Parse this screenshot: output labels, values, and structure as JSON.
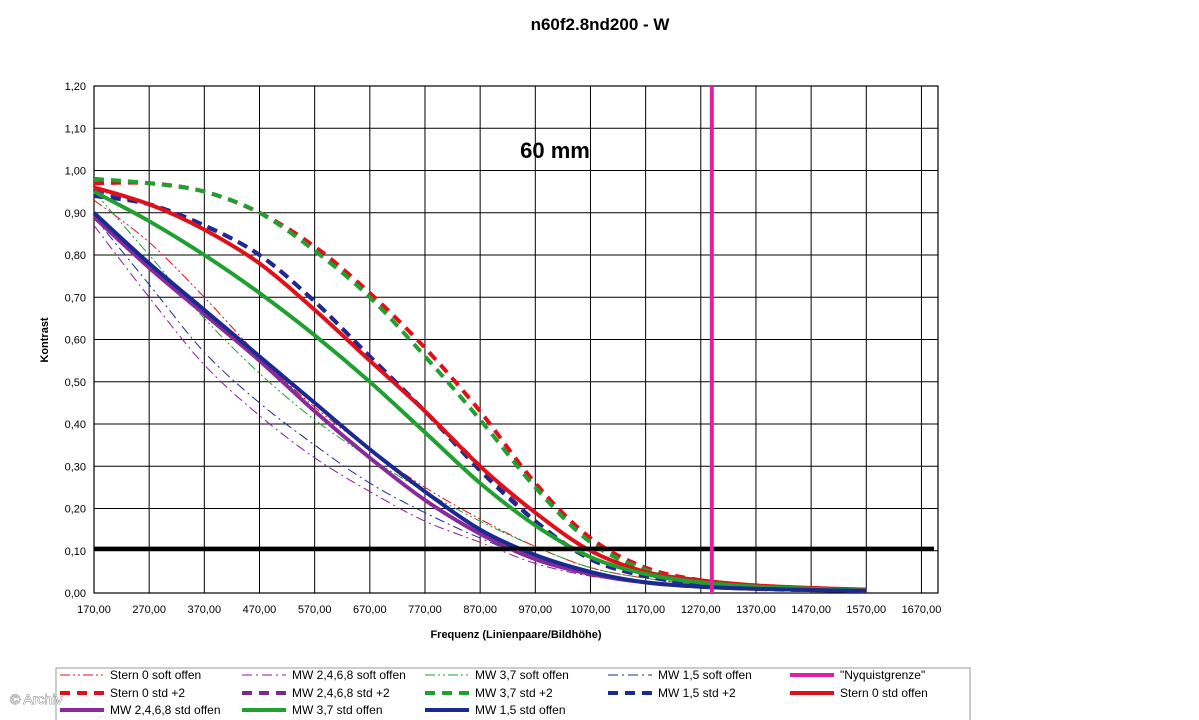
{
  "chart_data": {
    "type": "line",
    "title": "n60f2.8nd200 - W",
    "xlabel": "Frequenz (Linienpaare/Bildhöhe)",
    "ylabel": "Kontrast",
    "xlim": [
      170,
      1700
    ],
    "ylim": [
      0,
      1.2
    ],
    "x_ticks": [
      "170,00",
      "270,00",
      "370,00",
      "470,00",
      "570,00",
      "670,00",
      "770,00",
      "870,00",
      "970,00",
      "1070,00",
      "1170,00",
      "1270,00",
      "1370,00",
      "1470,00",
      "1570,00",
      "1670,00"
    ],
    "y_ticks": [
      "0,00",
      "0,10",
      "0,20",
      "0,30",
      "0,40",
      "0,50",
      "0,60",
      "0,70",
      "0,80",
      "0,90",
      "1,00",
      "1,10",
      "1,20"
    ],
    "grid": true,
    "legend_position": "bottom",
    "annotation": "60 mm",
    "reference_lines": [
      {
        "orientation": "horizontal",
        "value": 0.105,
        "color": "#000000"
      },
      {
        "name": "\"Nyquistgrenze\"",
        "orientation": "vertical",
        "value": 1290,
        "color": "#e020a0"
      }
    ],
    "series": [
      {
        "name": "Stern 0 soft offen",
        "color": "#e0101a",
        "style": "dashdotdot",
        "width": 1,
        "x": [
          170,
          270,
          370,
          470,
          570,
          670,
          770,
          870,
          970,
          1070,
          1170,
          1270,
          1370,
          1470,
          1570
        ],
        "y": [
          0.93,
          0.83,
          0.7,
          0.56,
          0.44,
          0.34,
          0.25,
          0.175,
          0.11,
          0.06,
          0.035,
          0.02,
          0.012,
          0.008,
          0.005
        ]
      },
      {
        "name": "MW 2,4,6,8 soft offen",
        "color": "#8a1c9a",
        "style": "dashdot",
        "width": 1,
        "x": [
          170,
          270,
          370,
          470,
          570,
          670,
          770,
          870,
          970,
          1070,
          1170,
          1270,
          1370,
          1470,
          1570
        ],
        "y": [
          0.87,
          0.7,
          0.54,
          0.42,
          0.32,
          0.24,
          0.17,
          0.12,
          0.07,
          0.04,
          0.025,
          0.015,
          0.01,
          0.007,
          0.005
        ]
      },
      {
        "name": "MW 3,7 soft offen",
        "color": "#20a030",
        "style": "dashdotdot",
        "width": 1,
        "x": [
          170,
          270,
          370,
          470,
          570,
          670,
          770,
          870,
          970,
          1070,
          1170,
          1270,
          1370,
          1470,
          1570
        ],
        "y": [
          0.95,
          0.8,
          0.65,
          0.52,
          0.41,
          0.32,
          0.24,
          0.17,
          0.11,
          0.06,
          0.035,
          0.02,
          0.012,
          0.008,
          0.005
        ]
      },
      {
        "name": "MW 1,5 soft offen",
        "color": "#1a2a90",
        "style": "dashdot",
        "width": 1,
        "x": [
          170,
          270,
          370,
          470,
          570,
          670,
          770,
          870,
          970,
          1070,
          1170,
          1270,
          1370,
          1470,
          1570
        ],
        "y": [
          0.89,
          0.73,
          0.57,
          0.45,
          0.35,
          0.26,
          0.19,
          0.13,
          0.08,
          0.045,
          0.025,
          0.015,
          0.01,
          0.007,
          0.005
        ]
      },
      {
        "name": "\"Nyquistgrenze\"",
        "color": "#e020a0",
        "style": "solid",
        "width": 4,
        "x": [
          1290,
          1290
        ],
        "y": [
          0,
          1.2
        ]
      },
      {
        "name": "Stern 0 std +2",
        "color": "#e0101a",
        "style": "dash",
        "width": 4,
        "x": [
          170,
          270,
          370,
          470,
          570,
          670,
          770,
          870,
          970,
          1070,
          1170,
          1270,
          1370,
          1470,
          1570
        ],
        "y": [
          0.97,
          0.97,
          0.95,
          0.9,
          0.82,
          0.71,
          0.58,
          0.43,
          0.26,
          0.13,
          0.06,
          0.03,
          0.015,
          0.01,
          0.008
        ]
      },
      {
        "name": "MW 2,4,6,8 std +2",
        "color": "#7a2a8a",
        "style": "dash",
        "width": 4,
        "x": [
          170,
          270,
          370,
          470,
          570,
          670,
          770,
          870,
          970,
          1070,
          1170,
          1270,
          1370,
          1470,
          1570
        ],
        "y": [
          0.95,
          0.92,
          0.87,
          0.8,
          0.69,
          0.56,
          0.43,
          0.3,
          0.17,
          0.08,
          0.04,
          0.02,
          0.01,
          0.007,
          0.005
        ]
      },
      {
        "name": "MW 3,7 std +2",
        "color": "#20a030",
        "style": "dash",
        "width": 4,
        "x": [
          170,
          270,
          370,
          470,
          570,
          670,
          770,
          870,
          970,
          1070,
          1170,
          1270,
          1370,
          1470,
          1570
        ],
        "y": [
          0.98,
          0.97,
          0.95,
          0.9,
          0.81,
          0.7,
          0.56,
          0.41,
          0.25,
          0.12,
          0.055,
          0.025,
          0.012,
          0.008,
          0.005
        ]
      },
      {
        "name": "MW 1,5 std +2",
        "color": "#1a2a90",
        "style": "dash",
        "width": 4,
        "x": [
          170,
          270,
          370,
          470,
          570,
          670,
          770,
          870,
          970,
          1070,
          1170,
          1270,
          1370,
          1470,
          1570
        ],
        "y": [
          0.94,
          0.92,
          0.87,
          0.8,
          0.69,
          0.56,
          0.43,
          0.29,
          0.17,
          0.08,
          0.04,
          0.02,
          0.01,
          0.007,
          0.005
        ]
      },
      {
        "name": "Stern 0 std offen",
        "color": "#e0101a",
        "style": "solid",
        "width": 4,
        "x": [
          170,
          270,
          370,
          470,
          570,
          670,
          770,
          870,
          970,
          1070,
          1170,
          1270,
          1370,
          1470,
          1570
        ],
        "y": [
          0.96,
          0.92,
          0.86,
          0.78,
          0.67,
          0.55,
          0.43,
          0.3,
          0.19,
          0.1,
          0.05,
          0.03,
          0.018,
          0.012,
          0.008
        ]
      },
      {
        "name": "MW 2,4,6,8 std offen",
        "color": "#8a2a9a",
        "style": "solid",
        "width": 4,
        "x": [
          170,
          270,
          370,
          470,
          570,
          670,
          770,
          870,
          970,
          1070,
          1170,
          1270,
          1370,
          1470,
          1570
        ],
        "y": [
          0.89,
          0.77,
          0.66,
          0.55,
          0.43,
          0.32,
          0.22,
          0.14,
          0.08,
          0.045,
          0.025,
          0.015,
          0.01,
          0.007,
          0.005
        ]
      },
      {
        "name": "MW 3,7 std offen",
        "color": "#20a030",
        "style": "solid",
        "width": 4,
        "x": [
          170,
          270,
          370,
          470,
          570,
          670,
          770,
          870,
          970,
          1070,
          1170,
          1270,
          1370,
          1470,
          1570
        ],
        "y": [
          0.95,
          0.88,
          0.8,
          0.71,
          0.61,
          0.5,
          0.38,
          0.26,
          0.16,
          0.085,
          0.045,
          0.025,
          0.015,
          0.01,
          0.006
        ]
      },
      {
        "name": "MW 1,5 std offen",
        "color": "#1a2a90",
        "style": "solid",
        "width": 4,
        "x": [
          170,
          270,
          370,
          470,
          570,
          670,
          770,
          870,
          970,
          1070,
          1170,
          1270,
          1370,
          1470,
          1570
        ],
        "y": [
          0.9,
          0.78,
          0.67,
          0.56,
          0.45,
          0.34,
          0.24,
          0.15,
          0.09,
          0.05,
          0.025,
          0.015,
          0.01,
          0.007,
          0.005
        ]
      }
    ]
  },
  "watermark": "© Archiv"
}
